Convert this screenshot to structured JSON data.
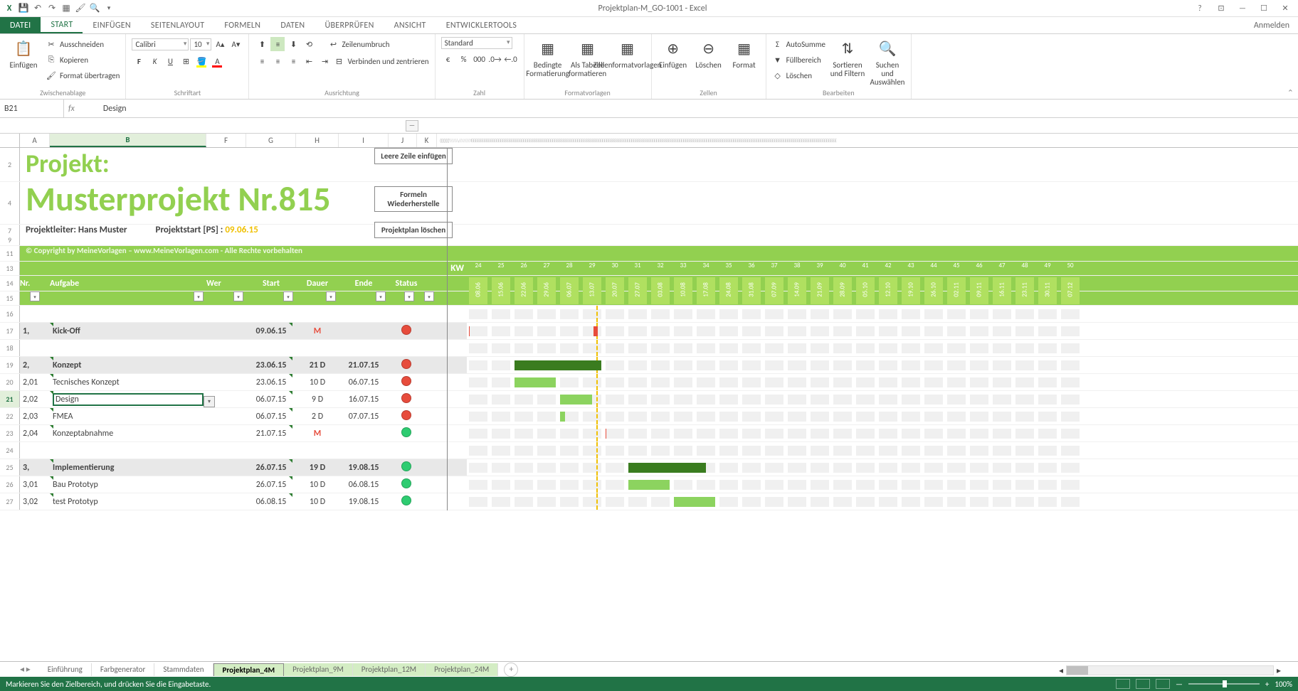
{
  "app": {
    "title": "Projektplan-M_GO-1001 - Excel",
    "signin": "Anmelden"
  },
  "qat": [
    "xl",
    "save",
    "undo",
    "redo",
    "paint1",
    "paint2",
    "zoom"
  ],
  "ribbon_tabs": {
    "file": "DATEI",
    "items": [
      "START",
      "EINFÜGEN",
      "SEITENLAYOUT",
      "FORMELN",
      "DATEN",
      "ÜBERPRÜFEN",
      "ANSICHT",
      "ENTWICKLERTOOLS"
    ],
    "active_index": 0
  },
  "ribbon": {
    "clipboard": {
      "paste": "Einfügen",
      "cut": "Ausschneiden",
      "copy": "Kopieren",
      "format_painter": "Format übertragen",
      "label": "Zwischenablage"
    },
    "font": {
      "name": "Calibri",
      "size": "10",
      "bold": "F",
      "italic": "K",
      "underline": "U",
      "label": "Schriftart"
    },
    "alignment": {
      "wrap": "Zeilenumbruch",
      "merge": "Verbinden und zentrieren",
      "label": "Ausrichtung"
    },
    "number": {
      "format": "Standard",
      "label": "Zahl"
    },
    "styles": {
      "cond": "Bedingte Formatierung",
      "table": "Als Tabelle formatieren",
      "cell": "Zellenformatvorlagen",
      "label": "Formatvorlagen"
    },
    "cells": {
      "insert": "Einfügen",
      "delete": "Löschen",
      "format": "Format",
      "label": "Zellen"
    },
    "editing": {
      "autosum": "AutoSumme",
      "fill": "Füllbereich",
      "clear": "Löschen",
      "sort": "Sortieren und Filtern",
      "find": "Suchen und Auswählen",
      "label": "Bearbeiten"
    }
  },
  "formula_bar": {
    "name_box": "B21",
    "fx": "fx",
    "value": "Design"
  },
  "columns": {
    "visible": [
      "A",
      "B",
      "F",
      "G",
      "H",
      "I",
      "J",
      "K"
    ],
    "widths": {
      "A": 42,
      "B": 220,
      "F": 56,
      "G": 70,
      "H": 60,
      "I": 70,
      "J": 40,
      "K": 28
    },
    "active": "B"
  },
  "project": {
    "label": "Projekt:",
    "name": "Musterprojekt Nr.815",
    "leader_label": "Projektleiter:",
    "leader": "Hans Muster",
    "start_label": "Projektstart [PS] :",
    "start_date": "09.06.15",
    "btn_insert": "Leere Zeile einfügen",
    "btn_formulas": "Formeln Wiederherstelle",
    "btn_delete": "Projektplan löschen",
    "copyright": "© Copyright by MeineVorlagen – www.MeineVorlagen.com - Alle Rechte vorbehalten"
  },
  "headers": {
    "nr": "Nr.",
    "task": "Aufgabe",
    "who": "Wer",
    "start": "Start",
    "duration": "Dauer",
    "end": "Ende",
    "status": "Status",
    "kw": "KW"
  },
  "timeline": {
    "weeks": [
      {
        "n": "24",
        "d": "08.06"
      },
      {
        "n": "25",
        "d": "15.06"
      },
      {
        "n": "26",
        "d": "22.06"
      },
      {
        "n": "27",
        "d": "29.06"
      },
      {
        "n": "28",
        "d": "06.07"
      },
      {
        "n": "29",
        "d": "13.07"
      },
      {
        "n": "30",
        "d": "20.07"
      },
      {
        "n": "31",
        "d": "27.07"
      },
      {
        "n": "32",
        "d": "03.08"
      },
      {
        "n": "33",
        "d": "10.08"
      },
      {
        "n": "34",
        "d": "17.08"
      },
      {
        "n": "35",
        "d": "24.08"
      },
      {
        "n": "36",
        "d": "31.08"
      },
      {
        "n": "37",
        "d": "07.09"
      },
      {
        "n": "38",
        "d": "14.09"
      },
      {
        "n": "39",
        "d": "21.09"
      },
      {
        "n": "40",
        "d": "28.09"
      },
      {
        "n": "41",
        "d": "05.10"
      },
      {
        "n": "42",
        "d": "12.10"
      },
      {
        "n": "43",
        "d": "19.10"
      },
      {
        "n": "44",
        "d": "26.10"
      },
      {
        "n": "45",
        "d": "02.11"
      },
      {
        "n": "46",
        "d": "09.11"
      },
      {
        "n": "47",
        "d": "16.11"
      },
      {
        "n": "48",
        "d": "23.11"
      },
      {
        "n": "49",
        "d": "30.11"
      },
      {
        "n": "50",
        "d": "07.12"
      }
    ],
    "week_width": 32,
    "today_week_index": 6,
    "colors": {
      "group_bar": "#3a7c1f",
      "task_bar": "#8cd35f",
      "milestone": "#e74c3c",
      "today": "#f0c000",
      "cell_bg": "#f0f0f0",
      "header_bg": "#92d050"
    }
  },
  "tasks": [
    {
      "row": 16,
      "type": "blank"
    },
    {
      "row": 17,
      "type": "group",
      "nr": "1,",
      "name": "Kick-Off",
      "start": "09.06.15",
      "dur": "M",
      "dur_m": true,
      "end": "",
      "status": "red",
      "bars": [
        {
          "w": 0,
          "len": 0.2,
          "cls": "bar-red"
        }
      ],
      "today_mark": true
    },
    {
      "row": 18,
      "type": "blank"
    },
    {
      "row": 19,
      "type": "group",
      "nr": "2,",
      "name": "Konzept",
      "start": "23.06.15",
      "dur": "21 D",
      "end": "21.07.15",
      "status": "red",
      "bars": [
        {
          "w": 2,
          "len": 4,
          "cls": "bar-dark"
        }
      ]
    },
    {
      "row": 20,
      "type": "task",
      "nr": "2,01",
      "name": "Tecnisches Konzept",
      "start": "23.06.15",
      "dur": "10 D",
      "end": "06.07.15",
      "status": "red",
      "bars": [
        {
          "w": 2,
          "len": 2,
          "cls": "bar-light"
        }
      ]
    },
    {
      "row": 21,
      "type": "task",
      "nr": "2,02",
      "name": "Design",
      "active": true,
      "start": "06.07.15",
      "dur": "9 D",
      "end": "16.07.15",
      "status": "red",
      "bars": [
        {
          "w": 4,
          "len": 1.6,
          "cls": "bar-light"
        }
      ]
    },
    {
      "row": 22,
      "type": "task",
      "nr": "2,03",
      "name": "FMEA",
      "start": "06.07.15",
      "dur": "2 D",
      "end": "07.07.15",
      "status": "red",
      "bars": [
        {
          "w": 4,
          "len": 0.4,
          "cls": "bar-light"
        }
      ]
    },
    {
      "row": 23,
      "type": "task",
      "nr": "2,04",
      "name": "Konzeptabnahme",
      "start": "21.07.15",
      "dur": "M",
      "dur_m": true,
      "end": "",
      "status": "green",
      "bars": [
        {
          "w": 6,
          "len": 0.2,
          "cls": "bar-red"
        }
      ]
    },
    {
      "row": 24,
      "type": "blank"
    },
    {
      "row": 25,
      "type": "group",
      "nr": "3,",
      "name": "Implementierung",
      "start": "26.07.15",
      "dur": "19 D",
      "end": "19.08.15",
      "status": "green",
      "bars": [
        {
          "w": 7,
          "len": 3.6,
          "cls": "bar-dark"
        }
      ]
    },
    {
      "row": 26,
      "type": "task",
      "nr": "3,01",
      "name": "Bau Prototyp",
      "start": "26.07.15",
      "dur": "10 D",
      "end": "06.08.15",
      "status": "green",
      "bars": [
        {
          "w": 7,
          "len": 2,
          "cls": "bar-light"
        }
      ]
    },
    {
      "row": 27,
      "type": "task",
      "nr": "3,02",
      "name": "test Prototyp",
      "start": "06.08.15",
      "dur": "10 D",
      "end": "19.08.15",
      "status": "green",
      "bars": [
        {
          "w": 9,
          "len": 2,
          "cls": "bar-light"
        }
      ]
    }
  ],
  "row_numbers_header": [
    "2",
    "",
    "4",
    "",
    "7",
    "9",
    "11",
    "13",
    "14",
    "15"
  ],
  "sheets": {
    "items": [
      "Einführung",
      "Farbgenerator",
      "Stammdaten",
      "Projektplan_4M",
      "Projektplan_9M",
      "Projektplan_12M",
      "Projektplan_24M"
    ],
    "green_from": 3,
    "active_index": 3
  },
  "statusbar": {
    "msg": "Markieren Sie den Zielbereich, und drücken Sie die Eingabetaste.",
    "zoom": "100%"
  }
}
